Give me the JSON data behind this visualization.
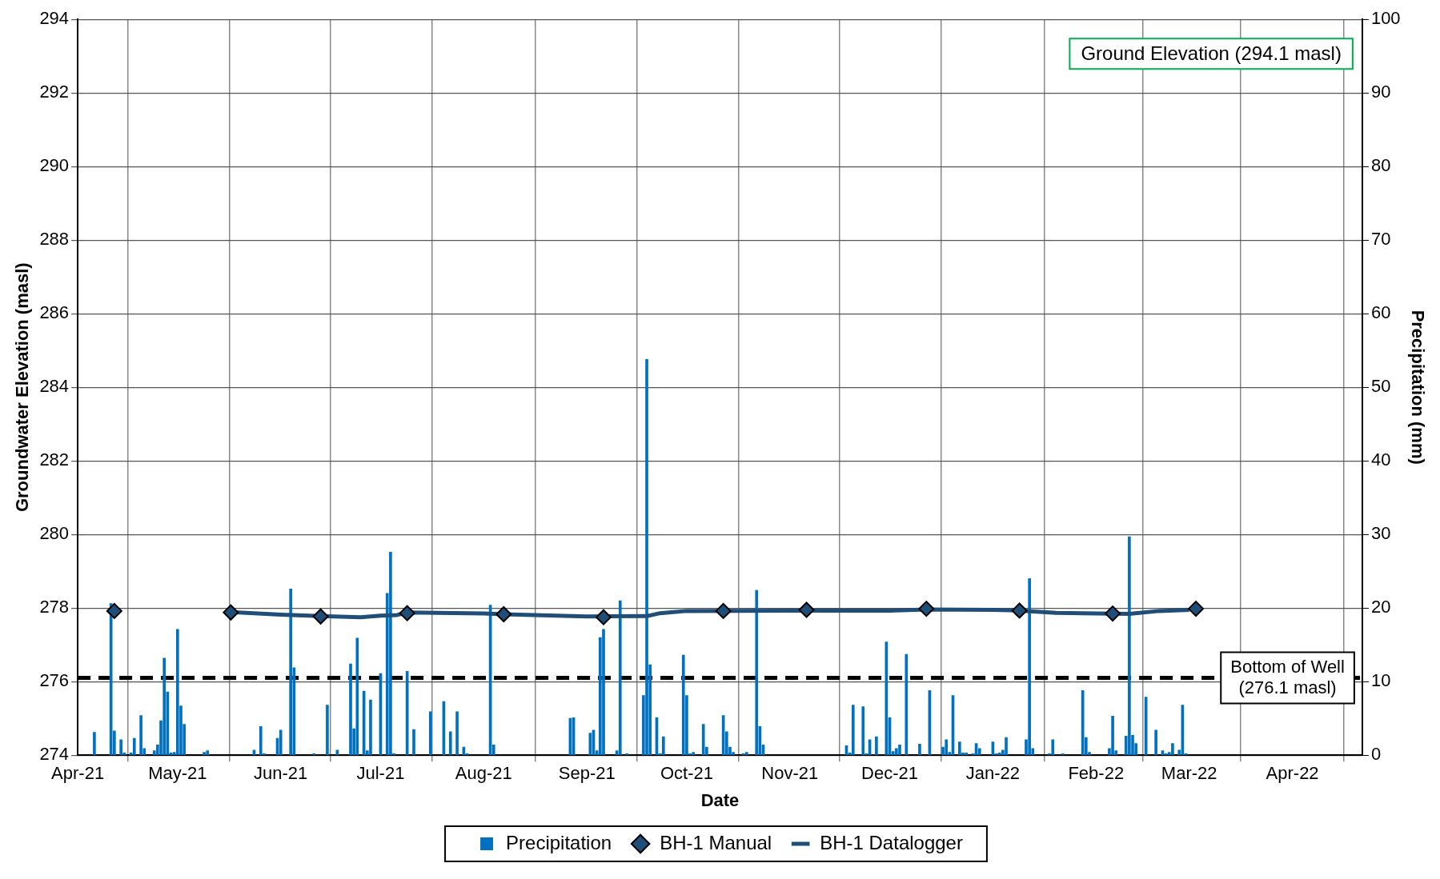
{
  "chart_data": {
    "type": "line",
    "xlabel": "Date",
    "ylabel": "Groundwater Elevation (masl)",
    "y2label": "Precipitation (mm)",
    "xlim": [
      "2021-04-01",
      "2022-04-22"
    ],
    "xticks": [
      {
        "value": "2021-04-01",
        "label": "Apr-21"
      },
      {
        "value": "2021-05-01",
        "label": "May-21"
      },
      {
        "value": "2021-06-01",
        "label": "Jun-21"
      },
      {
        "value": "2021-07-01",
        "label": "Jul-21"
      },
      {
        "value": "2021-08-01",
        "label": "Aug-21"
      },
      {
        "value": "2021-09-01",
        "label": "Sep-21"
      },
      {
        "value": "2021-10-01",
        "label": "Oct-21"
      },
      {
        "value": "2021-11-01",
        "label": "Nov-21"
      },
      {
        "value": "2021-12-01",
        "label": "Dec-21"
      },
      {
        "value": "2022-01-01",
        "label": "Jan-22"
      },
      {
        "value": "2022-02-01",
        "label": "Feb-22"
      },
      {
        "value": "2022-03-01",
        "label": "Mar-22"
      },
      {
        "value": "2022-04-01",
        "label": "Apr-22"
      }
    ],
    "ylim": [
      274,
      294
    ],
    "yticks": [
      274,
      276,
      278,
      280,
      282,
      284,
      286,
      288,
      290,
      292,
      294
    ],
    "y2lim": [
      0,
      100
    ],
    "y2ticks": [
      0,
      10,
      20,
      30,
      40,
      50,
      60,
      70,
      80,
      90,
      100
    ],
    "grid": true,
    "legend": "bottom",
    "series": [
      {
        "name": "Precipitation",
        "type": "bar",
        "axis": "y2",
        "color": "#0070c0",
        "x": [
          "2021-04-06",
          "2021-04-11",
          "2021-04-12",
          "2021-04-14",
          "2021-04-15",
          "2021-04-17",
          "2021-04-18",
          "2021-04-20",
          "2021-04-21",
          "2021-04-24",
          "2021-04-25",
          "2021-04-26",
          "2021-04-27",
          "2021-04-28",
          "2021-04-29",
          "2021-04-30",
          "2021-05-01",
          "2021-05-02",
          "2021-05-03",
          "2021-05-09",
          "2021-05-10",
          "2021-05-24",
          "2021-05-26",
          "2021-05-27",
          "2021-05-31",
          "2021-06-01",
          "2021-06-04",
          "2021-06-05",
          "2021-06-11",
          "2021-06-15",
          "2021-06-18",
          "2021-06-22",
          "2021-06-23",
          "2021-06-24",
          "2021-06-26",
          "2021-06-27",
          "2021-06-28",
          "2021-07-01",
          "2021-07-03",
          "2021-07-04",
          "2021-07-05",
          "2021-07-09",
          "2021-07-11",
          "2021-07-16",
          "2021-07-20",
          "2021-07-22",
          "2021-07-24",
          "2021-07-26",
          "2021-07-27",
          "2021-08-03",
          "2021-08-04",
          "2021-08-27",
          "2021-08-28",
          "2021-09-02",
          "2021-09-03",
          "2021-09-04",
          "2021-09-05",
          "2021-09-06",
          "2021-09-10",
          "2021-09-11",
          "2021-09-13",
          "2021-09-18",
          "2021-09-19",
          "2021-09-20",
          "2021-09-22",
          "2021-09-23",
          "2021-09-24",
          "2021-09-30",
          "2021-10-01",
          "2021-10-02",
          "2021-10-03",
          "2021-10-06",
          "2021-10-07",
          "2021-10-12",
          "2021-10-13",
          "2021-10-14",
          "2021-10-15",
          "2021-10-18",
          "2021-10-19",
          "2021-10-22",
          "2021-10-23",
          "2021-10-24",
          "2021-11-18",
          "2021-11-19",
          "2021-11-20",
          "2021-11-23",
          "2021-11-24",
          "2021-11-25",
          "2021-11-27",
          "2021-11-30",
          "2021-12-01",
          "2021-12-02",
          "2021-12-03",
          "2021-12-04",
          "2021-12-06",
          "2021-12-10",
          "2021-12-13",
          "2021-12-17",
          "2021-12-18",
          "2021-12-19",
          "2021-12-20",
          "2021-12-22",
          "2021-12-23",
          "2021-12-24",
          "2021-12-26",
          "2021-12-27",
          "2021-12-28",
          "2022-01-01",
          "2022-01-02",
          "2022-01-03",
          "2022-01-04",
          "2022-01-05",
          "2022-01-11",
          "2022-01-12",
          "2022-01-13",
          "2022-01-18",
          "2022-01-19",
          "2022-01-22",
          "2022-01-28",
          "2022-01-29",
          "2022-01-30",
          "2022-02-05",
          "2022-02-06",
          "2022-02-07",
          "2022-02-10",
          "2022-02-11",
          "2022-02-12",
          "2022-02-13",
          "2022-02-16",
          "2022-02-19",
          "2022-02-21",
          "2022-02-22",
          "2022-02-23",
          "2022-02-24",
          "2022-02-26",
          "2022-02-27",
          "2022-02-28"
        ],
        "values": [
          3.1,
          20.6,
          3.3,
          2.1,
          0.3,
          0.3,
          2.3,
          5.4,
          0.9,
          0.6,
          1.4,
          4.7,
          13.2,
          8.6,
          0.3,
          0.4,
          17.1,
          6.7,
          4.2,
          0.4,
          0.6,
          0.7,
          3.9,
          0.2,
          2.3,
          3.4,
          22.6,
          11.9,
          0.2,
          6.8,
          0.7,
          12.4,
          3.6,
          15.9,
          8.7,
          0.6,
          7.5,
          11.1,
          22.0,
          27.6,
          0.2,
          11.4,
          3.5,
          5.9,
          7.3,
          3.2,
          5.9,
          1.1,
          0.2,
          20.4,
          1.4,
          5.0,
          5.1,
          3.0,
          3.4,
          0.6,
          16.0,
          17.1,
          0.6,
          21.0,
          0.2,
          8.1,
          53.8,
          12.3,
          5.1,
          0.2,
          2.5,
          13.6,
          8.1,
          0.2,
          0.4,
          4.2,
          1.1,
          5.4,
          3.2,
          1.1,
          0.4,
          0.2,
          0.4,
          22.4,
          3.9,
          1.4,
          1.3,
          0.3,
          6.8,
          6.6,
          0.2,
          2.1,
          2.5,
          15.4,
          5.1,
          0.5,
          0.9,
          1.4,
          13.7,
          1.5,
          8.8,
          1.1,
          2.1,
          0.4,
          8.1,
          1.8,
          0.3,
          0.3,
          0.2,
          1.6,
          0.9,
          1.8,
          0.2,
          0.3,
          0.7,
          2.4,
          2.1,
          24.0,
          0.9,
          0.2,
          2.1,
          0.2,
          8.8,
          2.4,
          0.4,
          0.9,
          5.3,
          0.6,
          2.6,
          29.7,
          2.7,
          1.6,
          7.9,
          3.4,
          0.6,
          0.2,
          0.4,
          1.6,
          0.7,
          6.8,
          0.2
        ]
      },
      {
        "name": "BH-1 Manual",
        "type": "scatter",
        "marker": "diamond",
        "color": "#1f4e79",
        "x": [
          "2021-04-12",
          "2021-05-17",
          "2021-06-13",
          "2021-07-09",
          "2021-08-07",
          "2021-09-06",
          "2021-10-12",
          "2021-11-06",
          "2021-12-12",
          "2022-01-09",
          "2022-02-06",
          "2022-03-03"
        ],
        "values": [
          277.92,
          277.88,
          277.77,
          277.86,
          277.83,
          277.75,
          277.92,
          277.95,
          277.98,
          277.93,
          277.85,
          277.98
        ]
      },
      {
        "name": "BH-1 Datalogger",
        "marker": "none",
        "color": "#1f4e79",
        "x": [
          "2021-05-17",
          "2021-06-01",
          "2021-06-13",
          "2021-06-25",
          "2021-07-01",
          "2021-07-06",
          "2021-07-09",
          "2021-08-01",
          "2021-08-07",
          "2021-09-01",
          "2021-09-19",
          "2021-09-23",
          "2021-10-01",
          "2021-11-01",
          "2021-12-01",
          "2021-12-12",
          "2022-01-01",
          "2022-01-09",
          "2022-01-20",
          "2022-02-01",
          "2022-02-11",
          "2022-02-20",
          "2022-03-01"
        ],
        "values": [
          277.89,
          277.82,
          277.78,
          277.75,
          277.79,
          277.81,
          277.88,
          277.85,
          277.83,
          277.77,
          277.78,
          277.86,
          277.92,
          277.93,
          277.93,
          277.96,
          277.95,
          277.93,
          277.87,
          277.85,
          277.84,
          277.92,
          277.95
        ]
      }
    ],
    "ref_lines": [
      {
        "axis": "y",
        "value": 276.1,
        "label": "Bottom of Well (276.1 masl)",
        "color": "#000000",
        "line_style": "dashed"
      }
    ],
    "annotations": [
      "Ground Elevation (294.1 masl)"
    ]
  }
}
